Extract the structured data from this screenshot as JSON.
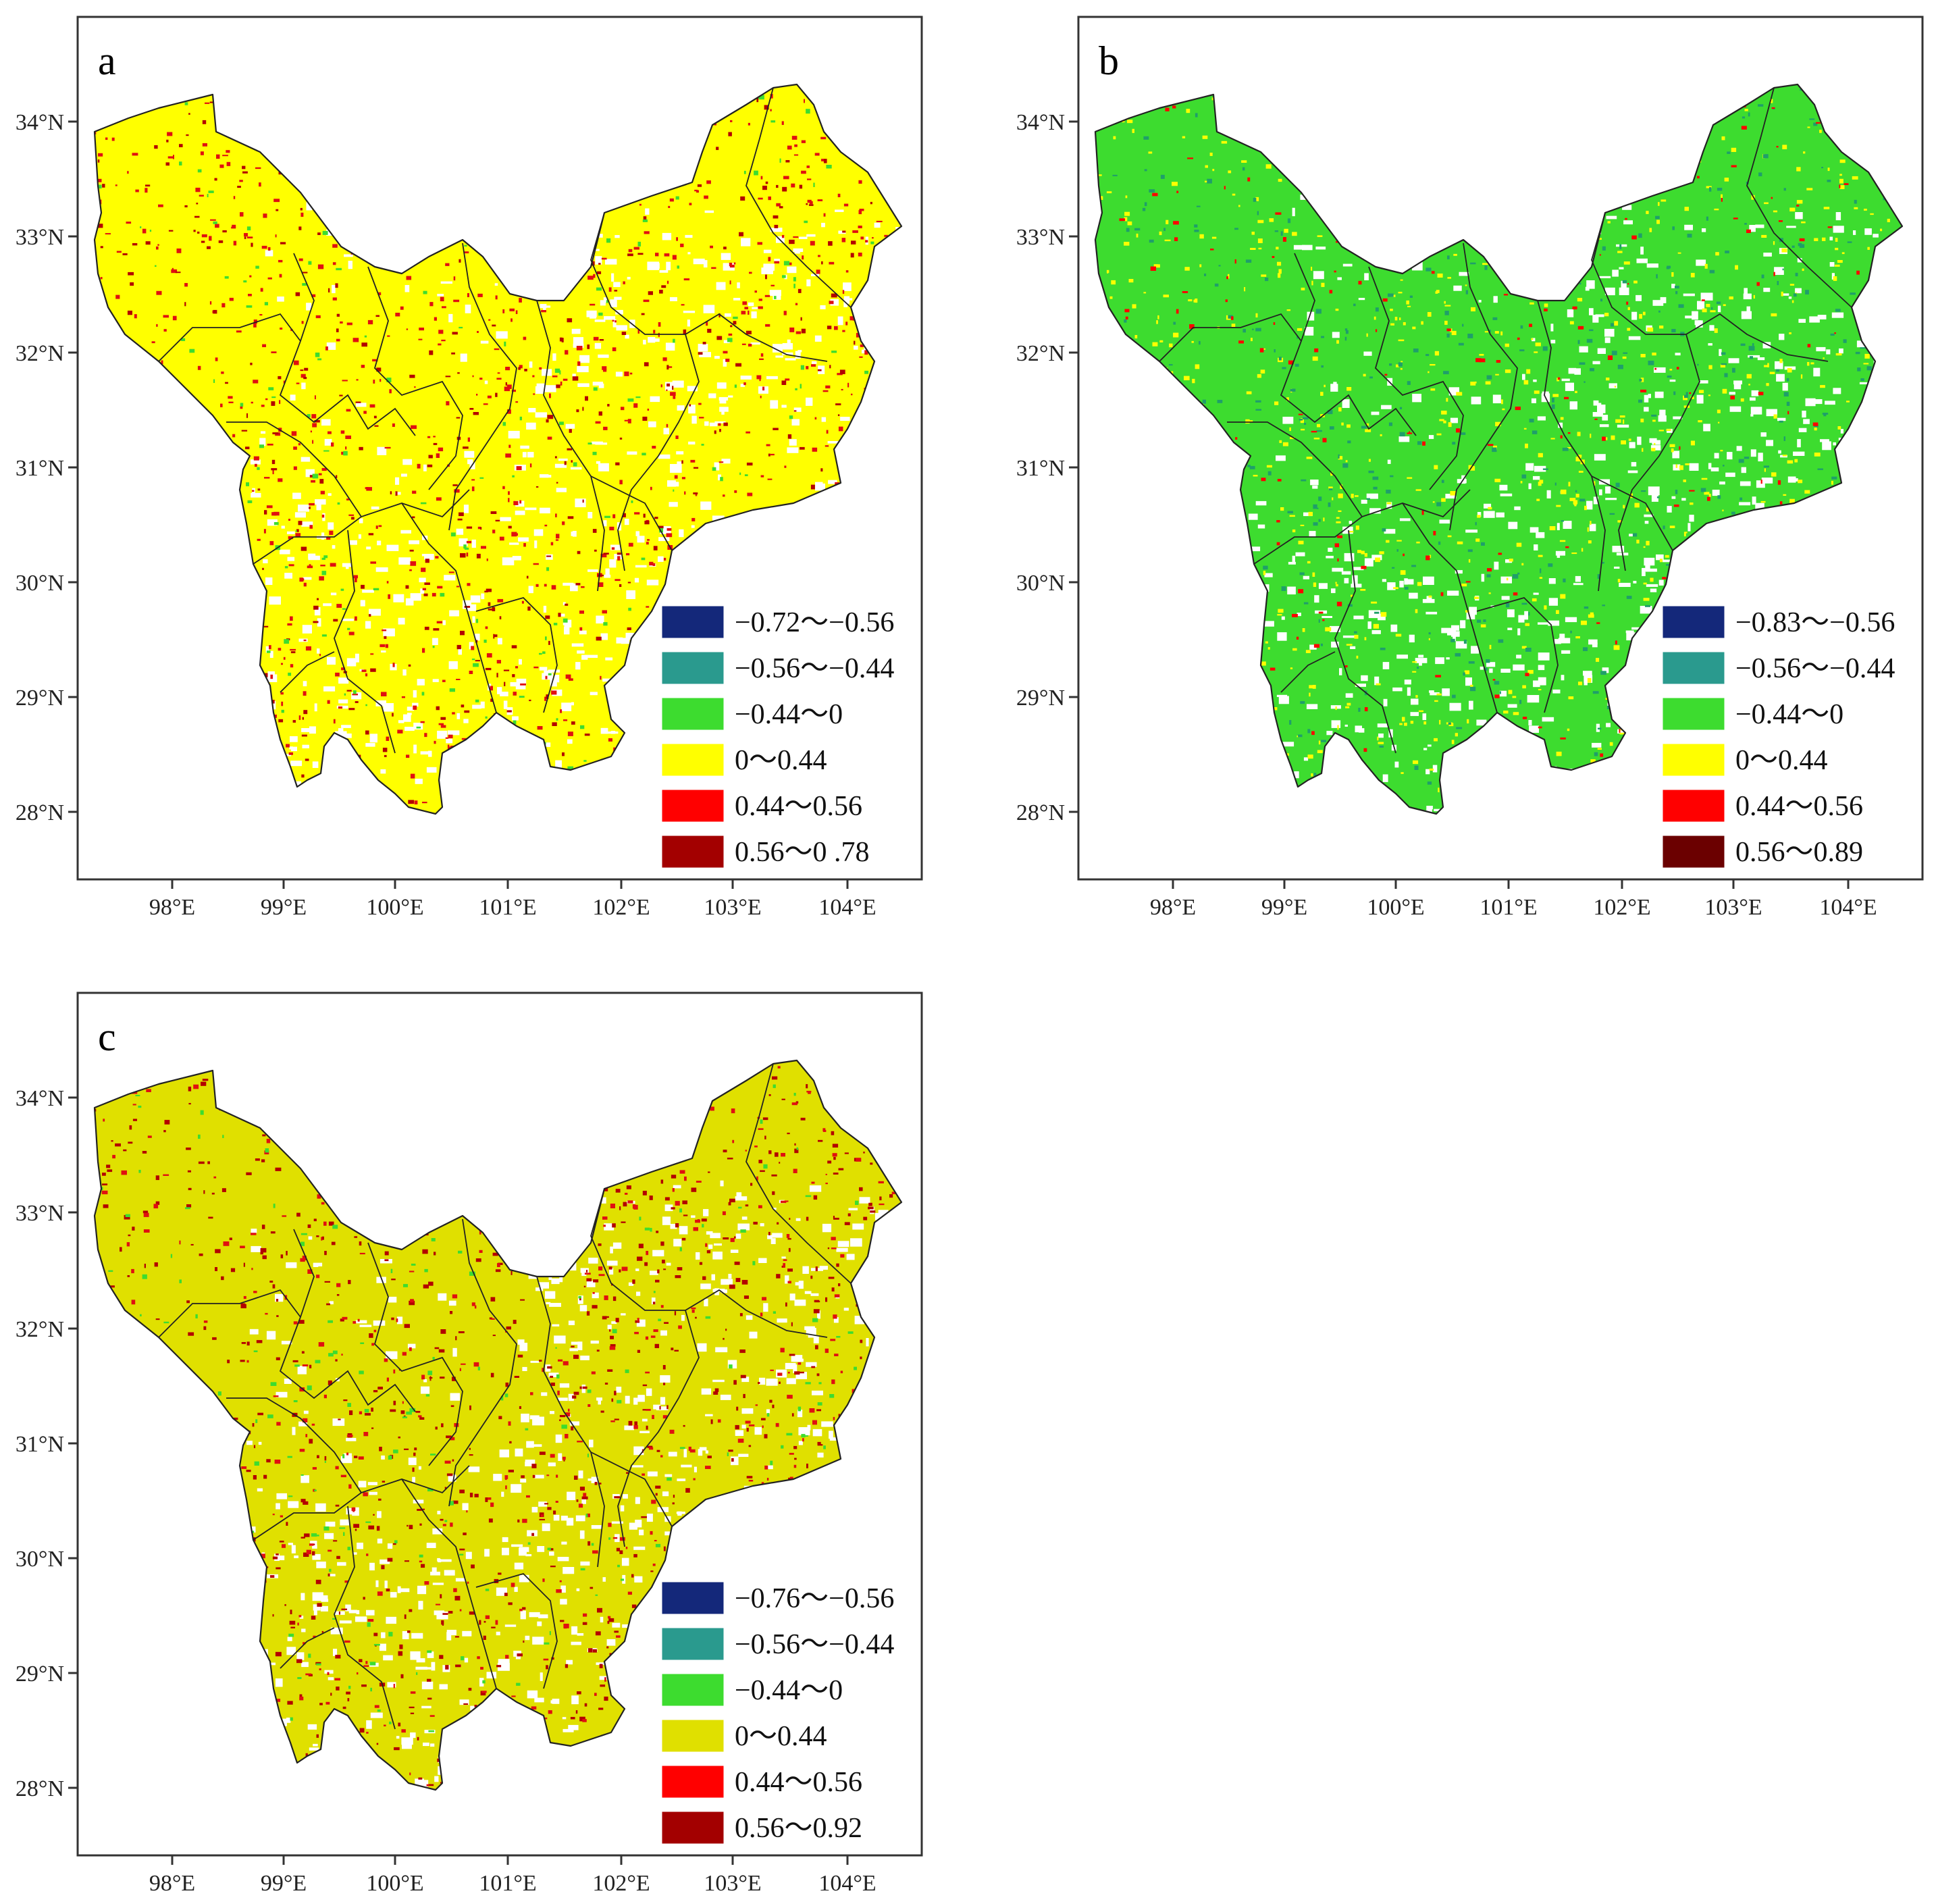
{
  "panels": [
    {
      "letter": "a",
      "lat_labels": [
        "34°N",
        "33°N",
        "32°N",
        "31°N",
        "30°N",
        "29°N",
        "28°N"
      ],
      "lon_labels": [
        "98°E",
        "99°E",
        "100°E",
        "101°E",
        "102°E",
        "103°E",
        "104°E"
      ],
      "legend": [
        {
          "label": "−0.72～−0.56",
          "color": "#14287a"
        },
        {
          "label": "−0.56～−0.44",
          "color": "#2a9a8e"
        },
        {
          "label": "−0.44～0",
          "color": "#3ddc2f"
        },
        {
          "label": "0～0.44",
          "color": "#ffff00"
        },
        {
          "label": "0.44～0.56",
          "color": "#ff0000"
        },
        {
          "label": "0.56～0 .78",
          "color": "#a30000"
        }
      ],
      "dominant_color": "#ffff00",
      "speckle_colors": [
        "#e01010",
        "#b30000",
        "#3ddc2f"
      ]
    },
    {
      "letter": "b",
      "lat_labels": [
        "34°N",
        "33°N",
        "32°N",
        "31°N",
        "30°N",
        "29°N",
        "28°N"
      ],
      "lon_labels": [
        "98°E",
        "99°E",
        "100°E",
        "101°E",
        "102°E",
        "103°E",
        "104°E"
      ],
      "legend": [
        {
          "label": "−0.83～−0.56",
          "color": "#14287a"
        },
        {
          "label": "−0.56～−0.44",
          "color": "#2a9a8e"
        },
        {
          "label": "−0.44～0",
          "color": "#3ddc2f"
        },
        {
          "label": "0～0.44",
          "color": "#ffff00"
        },
        {
          "label": "0.44～0.56",
          "color": "#ff0000"
        },
        {
          "label": "0.56～0.89",
          "color": "#6b0000"
        }
      ],
      "dominant_color": "#3ddc2f",
      "speckle_colors": [
        "#ffff00",
        "#1f9f6a",
        "#ff0000"
      ]
    },
    {
      "letter": "c",
      "lat_labels": [
        "34°N",
        "33°N",
        "32°N",
        "31°N",
        "30°N",
        "29°N",
        "28°N"
      ],
      "lon_labels": [
        "98°E",
        "99°E",
        "100°E",
        "101°E",
        "102°E",
        "103°E",
        "104°E"
      ],
      "legend": [
        {
          "label": "−0.76～−0.56",
          "color": "#14287a"
        },
        {
          "label": "−0.56～−0.44",
          "color": "#2a9a8e"
        },
        {
          "label": "−0.44～0",
          "color": "#3ddc2f"
        },
        {
          "label": "0～0.44",
          "color": "#e0e000"
        },
        {
          "label": "0.44～0.56",
          "color": "#ff0000"
        },
        {
          "label": "0.56～0.92",
          "color": "#a30000"
        }
      ],
      "dominant_color": "#e0e000",
      "speckle_colors": [
        "#b30000",
        "#e01010",
        "#3ddc2f"
      ]
    }
  ]
}
